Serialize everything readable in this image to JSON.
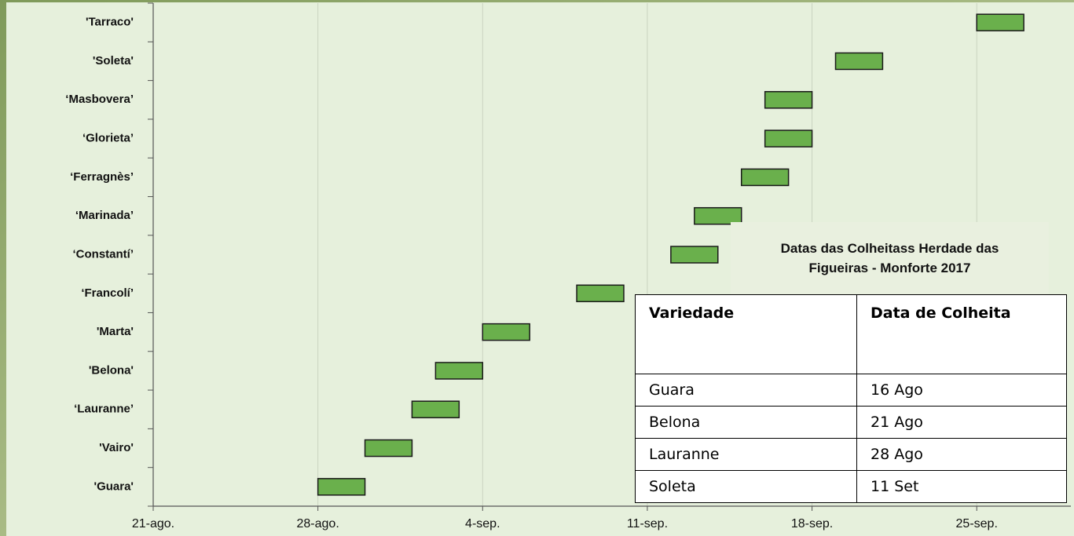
{
  "chart_data": {
    "type": "floating-bar",
    "categories": [
      "'Tarraco'",
      "'Soleta'",
      "‘Masbovera’",
      "‘Glorieta’",
      "‘Ferragnès’",
      "‘Marinada’",
      "‘Constantí’",
      "‘Francolí’",
      "'Marta'",
      "'Belona'",
      "‘Lauranne’",
      "'Vairo'",
      "'Guara'"
    ],
    "start": [
      268,
      262,
      259,
      259,
      258,
      256,
      255,
      251,
      247,
      245,
      244,
      242,
      240
    ],
    "end": [
      270,
      264,
      261,
      261,
      260,
      258,
      257,
      253,
      249,
      247,
      246,
      244,
      242
    ],
    "color": "#6ab04c",
    "xlim": [
      233,
      272
    ],
    "xticks": [
      {
        "value": 233,
        "label": "21-ago."
      },
      {
        "value": 240,
        "label": "28-ago."
      },
      {
        "value": 247,
        "label": "4-sep."
      },
      {
        "value": 254,
        "label": "11-sep."
      },
      {
        "value": 261,
        "label": "18-sep."
      },
      {
        "value": 268,
        "label": "25-sep."
      }
    ],
    "grid": true
  },
  "table": {
    "title": "Datas das Colheitass Herdade das Figueiras - Monforte 2017",
    "header": [
      "Variedade",
      "Data de Colheita"
    ],
    "rows": [
      [
        "Guara",
        "16 Ago"
      ],
      [
        "Belona",
        "21 Ago"
      ],
      [
        "Lauranne",
        "28 Ago"
      ],
      [
        "Soleta",
        "11 Set"
      ]
    ]
  }
}
